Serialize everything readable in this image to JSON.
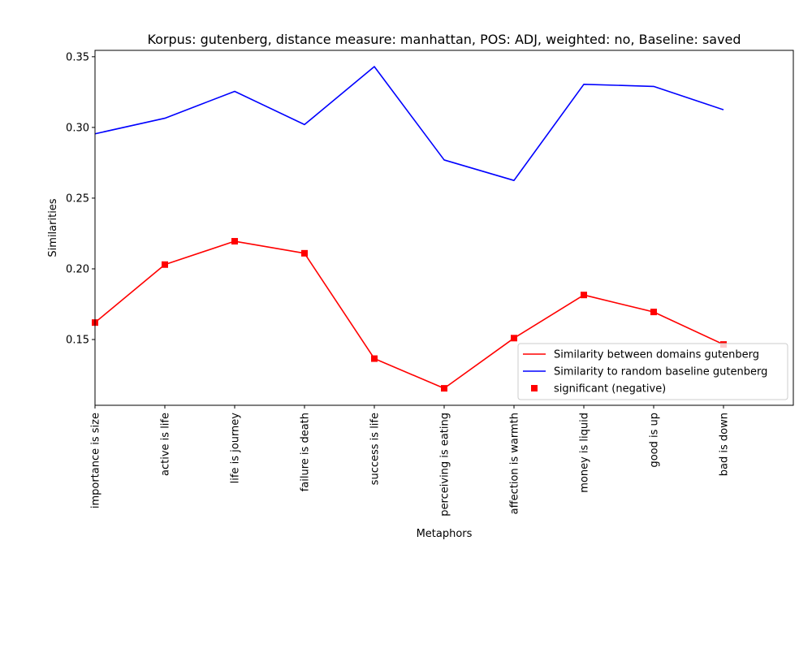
{
  "chart_data": {
    "type": "line",
    "title": "Korpus: gutenberg, distance measure: manhattan, POS: ADJ, weighted: no, Baseline: saved",
    "xlabel": "Metaphors",
    "ylabel": "Similarities",
    "categories": [
      "importance is size",
      "active is life",
      "life is journey",
      "failure is death",
      "success is life",
      "perceiving is eating",
      "affection is warmth",
      "money is liquid",
      "good is up",
      "bad is down"
    ],
    "ylim": [
      0.1035,
      0.3545
    ],
    "yticks": [
      0.15,
      0.2,
      0.25,
      0.3,
      0.35
    ],
    "ytick_labels": [
      "0.15",
      "0.20",
      "0.25",
      "0.30",
      "0.35"
    ],
    "grid": false,
    "legend_position": "lower-right",
    "series": [
      {
        "name": "Similarity between domains gutenberg",
        "color": "#ff0000",
        "marker": "none",
        "values": [
          0.162,
          0.203,
          0.2195,
          0.211,
          0.1365,
          0.1155,
          0.151,
          0.1815,
          0.1695,
          0.1465
        ]
      },
      {
        "name": "Similarity to random baseline gutenberg",
        "color": "#0000ff",
        "marker": "none",
        "values": [
          0.2955,
          0.3065,
          0.3255,
          0.302,
          0.343,
          0.277,
          0.2625,
          0.3305,
          0.329,
          0.3125
        ]
      },
      {
        "name": "significant (negative)",
        "color": "#ff0000",
        "marker": "square",
        "line": false,
        "values": [
          0.162,
          0.203,
          0.2195,
          0.211,
          0.1365,
          0.1155,
          0.151,
          0.1815,
          0.1695,
          0.1465
        ]
      }
    ]
  }
}
